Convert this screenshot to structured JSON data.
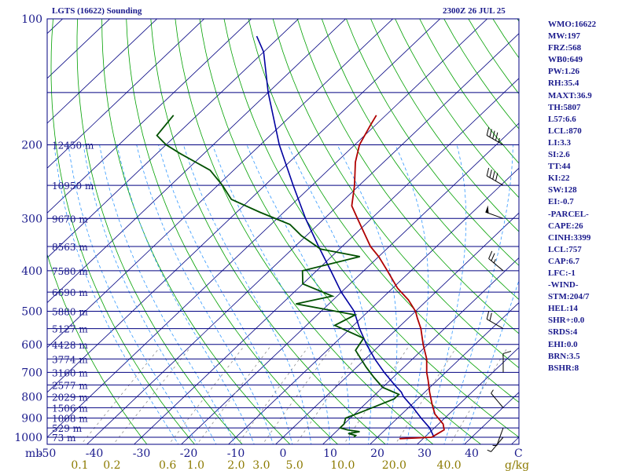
{
  "title_left": "LGTS (16622) Sounding",
  "title_right": "2300Z 26 JUL 25",
  "indices": [
    "WMO:16622",
    "MW:197",
    "FRZ:568",
    "WB0:649",
    "PW:1.26",
    "RH:35.4",
    "MAXT:36.9",
    "TH:5807",
    "L57:6.6",
    "LCL:870",
    "LI:3.3",
    "SI:2.6",
    "TT:44",
    "KI:22",
    "SW:128",
    "EI:-0.7",
    "-PARCEL-",
    "CAPE:26",
    "CINH:3399",
    "LCL:757",
    "CAP:6.7",
    "LFC:-1",
    "-WIND-",
    "STM:204/7",
    "HEL:14",
    "SHR+:0.0",
    "SRDS:4",
    "EHI:0.0",
    "BRN:3.5",
    "BSHR:8"
  ],
  "colors": {
    "border": "#000080",
    "isobar": "#000080",
    "isotherm": "#000080",
    "dry_adiabat": "#00a000",
    "moist_adiabat": "#3399ff",
    "mixing_ratio": "#909090",
    "temperature": "#b00000",
    "dewpoint": "#005000",
    "parcel": "#0000a0",
    "text": "#1a1a8c",
    "mixing_label": "#8c7a00"
  },
  "chart_data": {
    "type": "skew-t log-p",
    "title": "LGTS (16622) Sounding",
    "subtitle": "2300Z 26 JUL 25",
    "pressure_unit_label": "mb",
    "temp_unit_label": "C",
    "mixing_unit_label": "g/kg",
    "pressure_ticks": [
      100,
      200,
      300,
      400,
      500,
      600,
      700,
      800,
      900,
      1000
    ],
    "pressure_tick_labels": [
      "100",
      "200",
      "300",
      "400",
      "500",
      "600",
      "700",
      "800",
      "900",
      "1000"
    ],
    "temp_ticks": [
      -50,
      -40,
      -30,
      -20,
      -10,
      0,
      10,
      20,
      30,
      40
    ],
    "temp_tick_labels": [
      "-50",
      "-40",
      "-30",
      "-20",
      "-10",
      "0",
      "10",
      "20",
      "30",
      "40"
    ],
    "mixing_ratio_labels": [
      "0.1",
      "0.2",
      "0.6",
      "1.0",
      "2.0",
      "3.0",
      "5.0",
      "10.0",
      "20.0",
      "40.0"
    ],
    "mixing_ratio_values": [
      0.1,
      0.2,
      0.6,
      1.0,
      2.0,
      3.0,
      5.0,
      10.0,
      20.0,
      40.0
    ],
    "height_levels": [
      {
        "p": 200,
        "label": "12450 m"
      },
      {
        "p": 250,
        "label": "10950 m"
      },
      {
        "p": 300,
        "label": "9670 m"
      },
      {
        "p": 350,
        "label": "8563 m"
      },
      {
        "p": 400,
        "label": "7580 m"
      },
      {
        "p": 450,
        "label": "6690 m"
      },
      {
        "p": 500,
        "label": "5880 m"
      },
      {
        "p": 550,
        "label": "5127 m"
      },
      {
        "p": 600,
        "label": "4428 m"
      },
      {
        "p": 650,
        "label": "3774 m"
      },
      {
        "p": 700,
        "label": "3160 m"
      },
      {
        "p": 750,
        "label": "2577 m"
      },
      {
        "p": 800,
        "label": "2029 m"
      },
      {
        "p": 850,
        "label": "1506 m"
      },
      {
        "p": 900,
        "label": "1008 m"
      },
      {
        "p": 950,
        "label": "529 m"
      },
      {
        "p": 1000,
        "label": "73 m"
      }
    ],
    "extra_isobars": [
      150
    ],
    "temperature": [
      {
        "p": 1008,
        "t": 25
      },
      {
        "p": 1000,
        "t": 31.5
      },
      {
        "p": 980,
        "t": 32
      },
      {
        "p": 960,
        "t": 32.5
      },
      {
        "p": 930,
        "t": 31
      },
      {
        "p": 880,
        "t": 27
      },
      {
        "p": 830,
        "t": 24
      },
      {
        "p": 780,
        "t": 21
      },
      {
        "p": 730,
        "t": 18
      },
      {
        "p": 700,
        "t": 16
      },
      {
        "p": 650,
        "t": 13
      },
      {
        "p": 600,
        "t": 9
      },
      {
        "p": 550,
        "t": 5
      },
      {
        "p": 520,
        "t": 2
      },
      {
        "p": 500,
        "t": 0
      },
      {
        "p": 470,
        "t": -4
      },
      {
        "p": 440,
        "t": -9
      },
      {
        "p": 400,
        "t": -15
      },
      {
        "p": 370,
        "t": -20
      },
      {
        "p": 350,
        "t": -24
      },
      {
        "p": 300,
        "t": -33
      },
      {
        "p": 280,
        "t": -37
      },
      {
        "p": 250,
        "t": -41
      },
      {
        "p": 220,
        "t": -46
      },
      {
        "p": 200,
        "t": -49
      },
      {
        "p": 180,
        "t": -51
      },
      {
        "p": 170,
        "t": -52
      }
    ],
    "dewpoint": [
      {
        "p": 1000,
        "t": 15
      },
      {
        "p": 990,
        "t": 15
      },
      {
        "p": 980,
        "t": 13
      },
      {
        "p": 970,
        "t": 15
      },
      {
        "p": 960,
        "t": 12
      },
      {
        "p": 950,
        "t": 10
      },
      {
        "p": 930,
        "t": 10
      },
      {
        "p": 900,
        "t": 9
      },
      {
        "p": 870,
        "t": 11
      },
      {
        "p": 840,
        "t": 13
      },
      {
        "p": 810,
        "t": 15
      },
      {
        "p": 790,
        "t": 15
      },
      {
        "p": 760,
        "t": 10
      },
      {
        "p": 720,
        "t": 6
      },
      {
        "p": 680,
        "t": 2
      },
      {
        "p": 620,
        "t": -4
      },
      {
        "p": 580,
        "t": -5
      },
      {
        "p": 540,
        "t": -14
      },
      {
        "p": 510,
        "t": -12
      },
      {
        "p": 480,
        "t": -27
      },
      {
        "p": 460,
        "t": -21
      },
      {
        "p": 430,
        "t": -30
      },
      {
        "p": 400,
        "t": -33
      },
      {
        "p": 370,
        "t": -24
      },
      {
        "p": 355,
        "t": -34
      },
      {
        "p": 330,
        "t": -41
      },
      {
        "p": 310,
        "t": -46
      },
      {
        "p": 290,
        "t": -55
      },
      {
        "p": 270,
        "t": -64
      },
      {
        "p": 250,
        "t": -69
      },
      {
        "p": 230,
        "t": -75
      },
      {
        "p": 210,
        "t": -85
      },
      {
        "p": 200,
        "t": -90
      },
      {
        "p": 190,
        "t": -94
      },
      {
        "p": 170,
        "t": -95
      }
    ],
    "parcel": [
      {
        "p": 1000,
        "t": 32
      },
      {
        "p": 950,
        "t": 29
      },
      {
        "p": 900,
        "t": 25
      },
      {
        "p": 850,
        "t": 21
      },
      {
        "p": 800,
        "t": 16.5
      },
      {
        "p": 780,
        "t": 15
      },
      {
        "p": 750,
        "t": 12
      },
      {
        "p": 700,
        "t": 7
      },
      {
        "p": 650,
        "t": 2
      },
      {
        "p": 600,
        "t": -3
      },
      {
        "p": 550,
        "t": -8
      },
      {
        "p": 500,
        "t": -13
      },
      {
        "p": 450,
        "t": -20
      },
      {
        "p": 400,
        "t": -27
      },
      {
        "p": 350,
        "t": -35
      },
      {
        "p": 300,
        "t": -44
      },
      {
        "p": 250,
        "t": -54
      },
      {
        "p": 200,
        "t": -66
      },
      {
        "p": 150,
        "t": -80
      },
      {
        "p": 120,
        "t": -90
      },
      {
        "p": 110,
        "t": -95
      }
    ],
    "wind_barbs": [
      {
        "p": 200,
        "dir": 300,
        "speed": 45
      },
      {
        "p": 250,
        "dir": 300,
        "speed": 40
      },
      {
        "p": 300,
        "dir": 290,
        "speed": 50
      },
      {
        "p": 400,
        "dir": 310,
        "speed": 25
      },
      {
        "p": 550,
        "dir": 300,
        "speed": 20
      },
      {
        "p": 700,
        "dir": 0,
        "speed": 10
      },
      {
        "p": 850,
        "dir": 320,
        "speed": 5
      },
      {
        "p": 950,
        "dir": 200,
        "speed": 5
      },
      {
        "p": 1000,
        "dir": 220,
        "speed": 5
      }
    ],
    "plim": [
      100,
      1050
    ],
    "tlim_bottom": [
      -50,
      50
    ],
    "grid": true
  }
}
